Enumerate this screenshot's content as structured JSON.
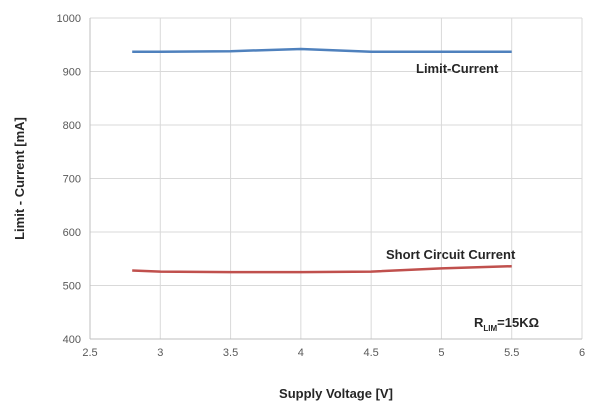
{
  "chart_data": {
    "type": "line",
    "xlabel": "Supply Voltage [V]",
    "ylabel": "Limit - Current [mA]",
    "xlim": [
      2.5,
      6
    ],
    "ylim": [
      400,
      1000
    ],
    "x_ticks": [
      "2.5",
      "3",
      "3.5",
      "4",
      "4.5",
      "5",
      "5.5",
      "6"
    ],
    "y_ticks": [
      "400",
      "500",
      "600",
      "700",
      "800",
      "900",
      "1000"
    ],
    "grid": "horizontal and vertical",
    "series": [
      {
        "name": "Limit-Current",
        "color": "#4f81bd",
        "x": [
          2.8,
          3.0,
          3.5,
          4.0,
          4.5,
          5.0,
          5.5
        ],
        "y": [
          937,
          937,
          938,
          942,
          937,
          937,
          937
        ]
      },
      {
        "name": "Short Circuit Current",
        "color": "#c0504d",
        "x": [
          2.8,
          3.0,
          3.5,
          4.0,
          4.5,
          5.0,
          5.5
        ],
        "y": [
          528,
          526,
          525,
          525,
          526,
          532,
          536
        ]
      }
    ],
    "annotation": {
      "main": "R",
      "subscript": "LIM",
      "suffix": "=15KΩ"
    }
  }
}
